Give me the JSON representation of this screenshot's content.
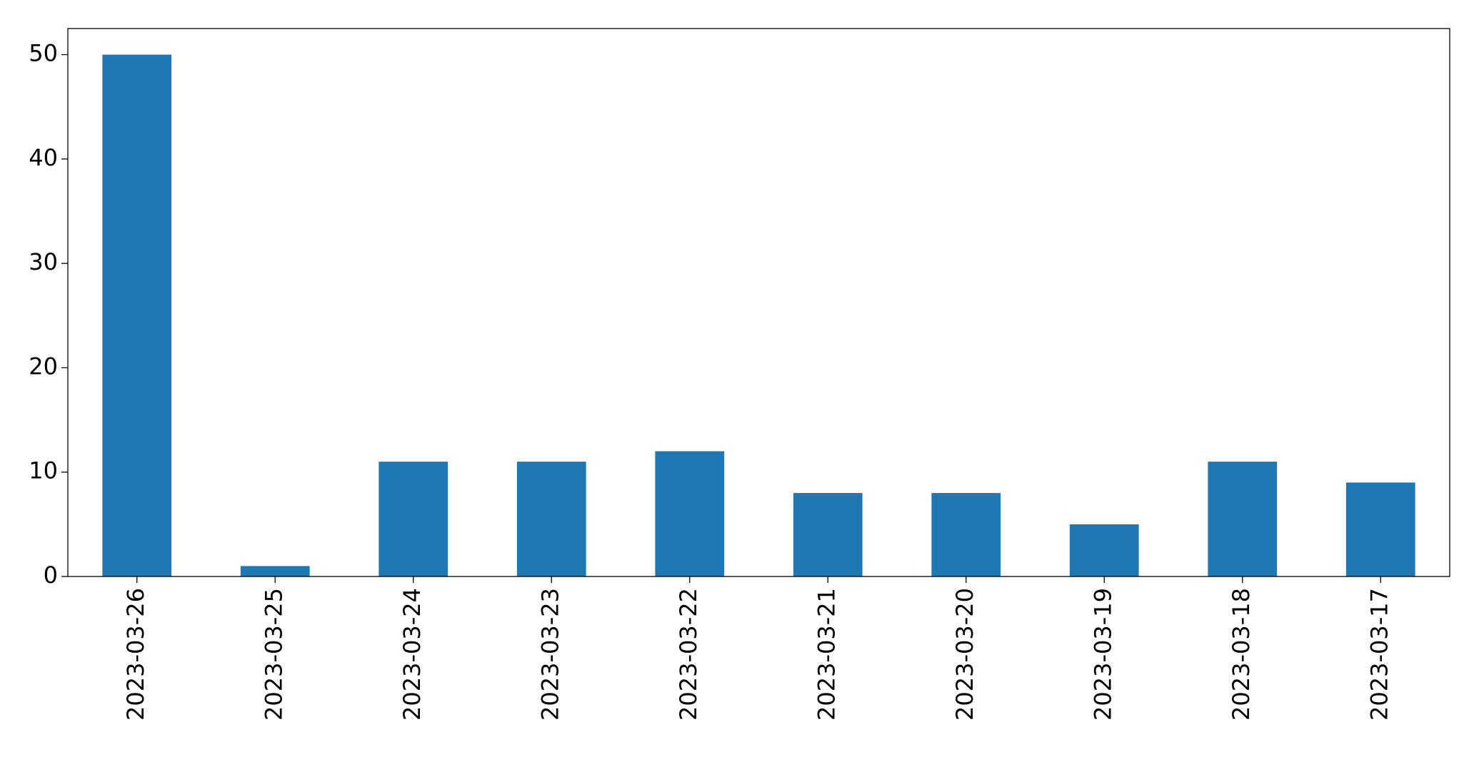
{
  "chart_data": {
    "type": "bar",
    "categories": [
      "2023-03-26",
      "2023-03-25",
      "2023-03-24",
      "2023-03-23",
      "2023-03-22",
      "2023-03-21",
      "2023-03-20",
      "2023-03-19",
      "2023-03-18",
      "2023-03-17"
    ],
    "values": [
      50,
      1,
      11,
      11,
      12,
      8,
      8,
      5,
      11,
      9
    ],
    "color": "#1f77b4",
    "ylim": [
      0,
      52.5
    ],
    "yticks": [
      0,
      10,
      20,
      30,
      40,
      50
    ],
    "grid": false
  }
}
